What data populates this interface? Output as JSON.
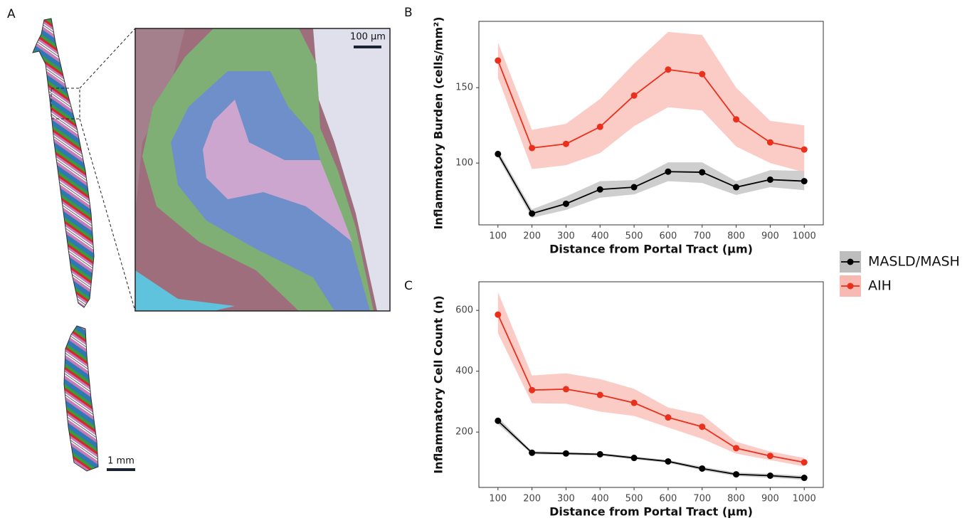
{
  "panel_labels": [
    "A",
    "B",
    "C"
  ],
  "scale_bars": [
    "100 µm",
    "1 mm"
  ],
  "legend": [
    {
      "name": "MASLD/MASH",
      "color": "#000000",
      "band_color": "#bdbdbd"
    },
    {
      "name": "AIH",
      "color": "#e8301c",
      "band_color": "#f9b9b3"
    }
  ],
  "chart_data": [
    {
      "type": "line",
      "x_label": "Distance from Portal Tract (µm)",
      "y_label": "Inflammatory Burden (cells/mm²)",
      "x": [
        100,
        200,
        300,
        400,
        500,
        600,
        700,
        800,
        900,
        1000
      ],
      "xlim": [
        44,
        1056
      ],
      "xticks": [
        100,
        200,
        300,
        400,
        500,
        600,
        700,
        800,
        900,
        1000
      ],
      "ylim": [
        59,
        194
      ],
      "yticks": [
        100,
        150
      ],
      "series": [
        {
          "color": "#000000",
          "band_color": "#bdbdbd",
          "values": [
            106,
            66.5,
            73,
            82.5,
            84,
            94.3,
            93.9,
            84,
            89,
            88
          ],
          "upper": [
            108.5,
            69.3,
            77.8,
            88,
            88.7,
            100.5,
            100.5,
            88,
            95.3,
            94.8
          ],
          "lower": [
            103.8,
            63.7,
            68.9,
            77,
            79.2,
            88,
            86.8,
            78.8,
            84,
            82
          ]
        },
        {
          "color": "#e8301c",
          "band_color": "#f9b9b3",
          "values": [
            168,
            110,
            112.7,
            124,
            144.8,
            162,
            159,
            129,
            113.7,
            109
          ],
          "upper": [
            180,
            122,
            126,
            142.5,
            166,
            187,
            185,
            150,
            128,
            125
          ],
          "lower": [
            156.6,
            96,
            98.6,
            106.6,
            124.5,
            137,
            134.9,
            111,
            100,
            93.9
          ]
        }
      ]
    },
    {
      "type": "line",
      "x_label": "Distance from Portal Tract (µm)",
      "y_label": "Inflammatory Cell Count (n)",
      "x": [
        100,
        200,
        300,
        400,
        500,
        600,
        700,
        800,
        900,
        1000
      ],
      "xlim": [
        44,
        1056
      ],
      "xticks": [
        100,
        200,
        300,
        400,
        500,
        600,
        700,
        800,
        900,
        1000
      ],
      "ylim": [
        18,
        694
      ],
      "yticks": [
        200,
        400,
        600
      ],
      "series": [
        {
          "color": "#000000",
          "band_color": "#bdbdbd",
          "values": [
            237,
            132,
            129.6,
            127,
            115,
            103.5,
            80,
            61,
            56.6,
            49.5
          ],
          "upper": [
            249,
            137,
            134,
            131,
            120,
            108,
            86,
            67,
            63,
            56
          ],
          "lower": [
            226,
            127,
            125,
            122,
            110,
            99,
            74,
            55,
            50,
            43
          ]
        },
        {
          "color": "#e8301c",
          "band_color": "#f9b9b3",
          "values": [
            586,
            338,
            341,
            322,
            296,
            248,
            217.5,
            147,
            121.6,
            100.5
          ],
          "upper": [
            660,
            386,
            393,
            374,
            342,
            281,
            257,
            168,
            136,
            115
          ],
          "lower": [
            525,
            295,
            293,
            267,
            253,
            215,
            178,
            129,
            108,
            87
          ]
        }
      ]
    }
  ]
}
